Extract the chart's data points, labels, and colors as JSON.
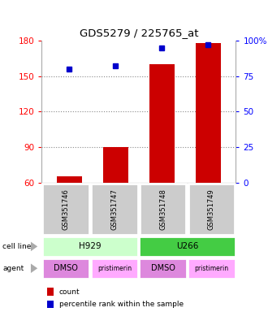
{
  "title": "GDS5279 / 225765_at",
  "samples": [
    "GSM351746",
    "GSM351747",
    "GSM351748",
    "GSM351749"
  ],
  "counts": [
    65,
    90,
    160,
    178
  ],
  "percentiles": [
    80,
    82,
    95,
    97
  ],
  "ylim_left": [
    60,
    180
  ],
  "ylim_right": [
    0,
    100
  ],
  "yticks_left": [
    60,
    90,
    120,
    150,
    180
  ],
  "yticks_right": [
    0,
    25,
    50,
    75,
    100
  ],
  "bar_color": "#cc0000",
  "dot_color": "#0000cc",
  "agents": [
    "DMSO",
    "pristimerin",
    "DMSO",
    "pristimerin"
  ],
  "cell_line_colors": {
    "H929": "#ccffcc",
    "U266": "#44cc44"
  },
  "agent_colors_list": [
    "#dd88dd",
    "#ffaaff",
    "#dd88dd",
    "#ffaaff"
  ],
  "grid_color": "#888888",
  "sample_box_color": "#cccccc",
  "legend_count_color": "#cc0000",
  "legend_percentile_color": "#0000cc",
  "bg_color": "#ffffff"
}
